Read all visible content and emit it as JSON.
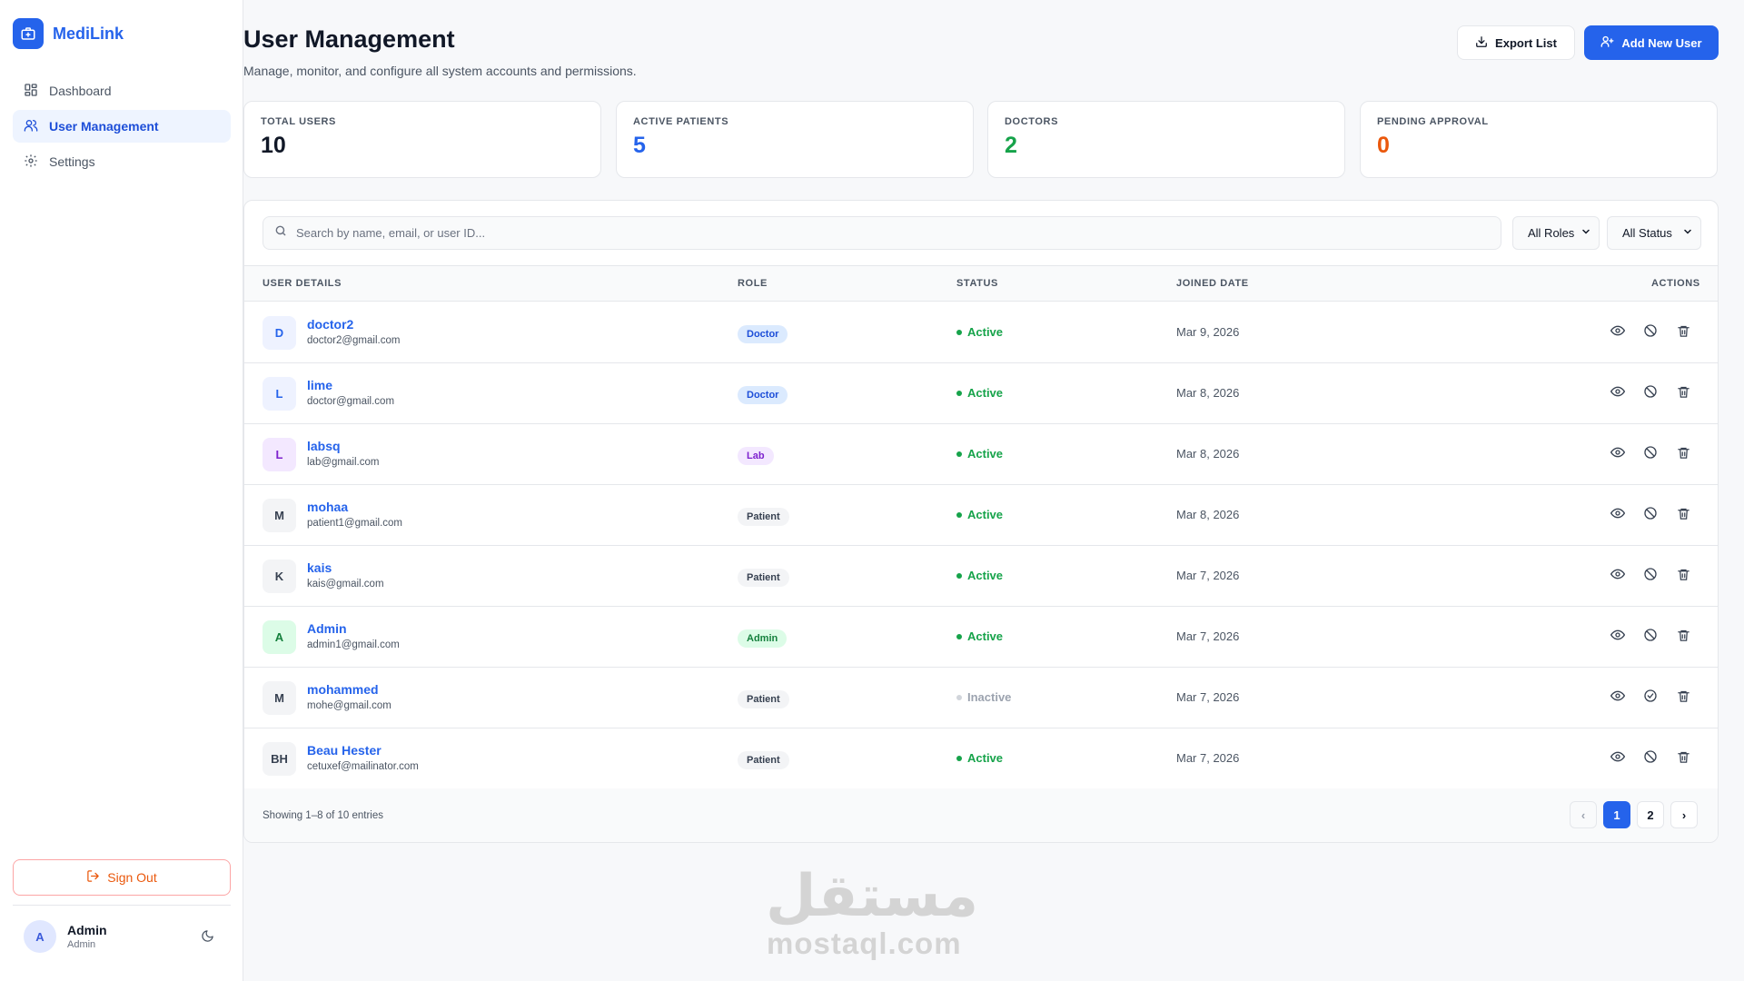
{
  "app": {
    "name": "MediLink"
  },
  "sidebar": {
    "items": [
      {
        "label": "Dashboard",
        "icon": "grid-icon",
        "active": false
      },
      {
        "label": "User Management",
        "icon": "users-icon",
        "active": true
      },
      {
        "label": "Settings",
        "icon": "gear-icon",
        "active": false
      }
    ],
    "signout_label": "Sign Out",
    "user": {
      "initial": "A",
      "name": "Admin",
      "role": "Admin"
    }
  },
  "header": {
    "title": "User Management",
    "subtitle": "Manage, monitor, and configure all system accounts and permissions.",
    "export_label": "Export List",
    "add_label": "Add New User"
  },
  "stats": [
    {
      "label": "TOTAL USERS",
      "value": "10",
      "color": "#111827"
    },
    {
      "label": "ACTIVE PATIENTS",
      "value": "5",
      "color": "#2563eb"
    },
    {
      "label": "DOCTORS",
      "value": "2",
      "color": "#16a34a"
    },
    {
      "label": "PENDING APPROVAL",
      "value": "0",
      "color": "#ea580c"
    }
  ],
  "filters": {
    "search_placeholder": "Search by name, email, or user ID...",
    "role_selected": "All Roles",
    "status_selected": "All Status"
  },
  "table": {
    "columns": [
      "USER DETAILS",
      "ROLE",
      "STATUS",
      "JOINED DATE",
      "ACTIONS"
    ],
    "rows": [
      {
        "initials": "D",
        "name": "doctor2",
        "email": "doctor2@gmail.com",
        "role": "Doctor",
        "status": "Active",
        "joined": "Mar 9, 2026"
      },
      {
        "initials": "L",
        "name": "lime",
        "email": "doctor@gmail.com",
        "role": "Doctor",
        "status": "Active",
        "joined": "Mar 8, 2026"
      },
      {
        "initials": "L",
        "name": "labsq",
        "email": "lab@gmail.com",
        "role": "Lab",
        "status": "Active",
        "joined": "Mar 8, 2026"
      },
      {
        "initials": "M",
        "name": "mohaa",
        "email": "patient1@gmail.com",
        "role": "Patient",
        "status": "Active",
        "joined": "Mar 8, 2026"
      },
      {
        "initials": "K",
        "name": "kais",
        "email": "kais@gmail.com",
        "role": "Patient",
        "status": "Active",
        "joined": "Mar 7, 2026"
      },
      {
        "initials": "A",
        "name": "Admin",
        "email": "admin1@gmail.com",
        "role": "Admin",
        "status": "Active",
        "joined": "Mar 7, 2026"
      },
      {
        "initials": "M",
        "name": "mohammed",
        "email": "mohe@gmail.com",
        "role": "Patient",
        "status": "Inactive",
        "joined": "Mar 7, 2026"
      },
      {
        "initials": "BH",
        "name": "Beau Hester",
        "email": "cetuxef@mailinator.com",
        "role": "Patient",
        "status": "Active",
        "joined": "Mar 7, 2026"
      }
    ]
  },
  "pagination": {
    "showing": "Showing 1–8 of 10 entries",
    "pages": [
      "1",
      "2"
    ],
    "current": "1",
    "prev": "‹",
    "next": "›"
  },
  "colors": {
    "accent": "#2563eb",
    "active_status": "#16a34a",
    "inactive_status": "#9ca3af"
  },
  "watermark": {
    "arabic": "مستقل",
    "latin": "mostaql.com"
  }
}
